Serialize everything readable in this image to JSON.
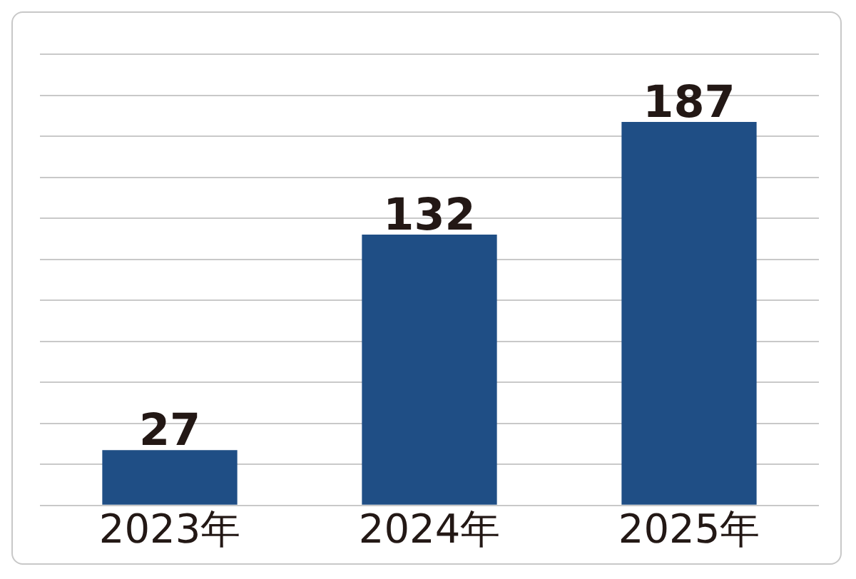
{
  "chart_data": {
    "type": "bar",
    "categories": [
      "2023年",
      "2024年",
      "2025年"
    ],
    "series": [
      {
        "color": "#1f4e85",
        "values": [
          27,
          132,
          187
        ]
      }
    ],
    "ylim": [
      0,
      220
    ],
    "yticks": [
      {
        "value": 0,
        "label": null
      },
      {
        "value": 20,
        "label": null
      },
      {
        "value": 40,
        "label": null
      },
      {
        "value": 60,
        "label": null
      },
      {
        "value": 80,
        "label": null
      },
      {
        "value": 100,
        "label": null
      },
      {
        "value": 120,
        "label": null
      },
      {
        "value": 140,
        "label": null
      },
      {
        "value": 160,
        "label": null
      },
      {
        "value": 180,
        "label": null
      },
      {
        "value": 200,
        "label": null
      },
      {
        "value": 220,
        "label": null
      }
    ],
    "grid": "y",
    "tick_labels": "x",
    "data_labels": true,
    "legend": false
  }
}
